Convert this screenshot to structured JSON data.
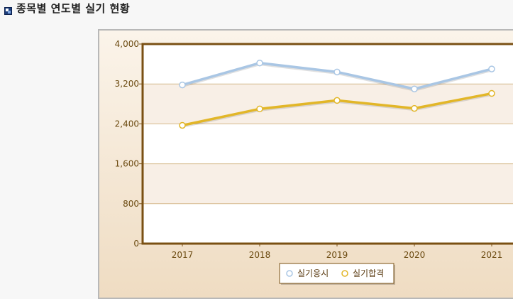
{
  "page": {
    "title": "종목별 연도별 실기 현황",
    "title_icon": "square-bullet-icon"
  },
  "colors": {
    "frame_border": "#b8b8b8",
    "outer_bg_top": "#fbf4ea",
    "outer_bg_bottom": "#efdcc2",
    "plot_border": "#7a5013",
    "band_light": "#ffffff",
    "band_tint": "#f8efe6",
    "gridline": "#d6b98c",
    "tick_text": "#6b4a10"
  },
  "chart_data": {
    "type": "line",
    "title": "",
    "xlabel": "",
    "ylabel": "",
    "categories": [
      "2017",
      "2018",
      "2019",
      "2020",
      "2021"
    ],
    "ylim": [
      0,
      4000
    ],
    "yticks": [
      0,
      800,
      1600,
      2400,
      3200,
      4000
    ],
    "ytick_labels": [
      "0",
      "800",
      "1,600",
      "2,400",
      "3,200",
      "4,000"
    ],
    "grid": true,
    "legend_position": "bottom-center",
    "series": [
      {
        "name": "실기응시",
        "values": [
          3180,
          3620,
          3440,
          3100,
          3500
        ],
        "color": "#a9c6e4"
      },
      {
        "name": "실기합격",
        "values": [
          2370,
          2700,
          2870,
          2710,
          3010
        ],
        "color": "#e2b628"
      }
    ]
  }
}
